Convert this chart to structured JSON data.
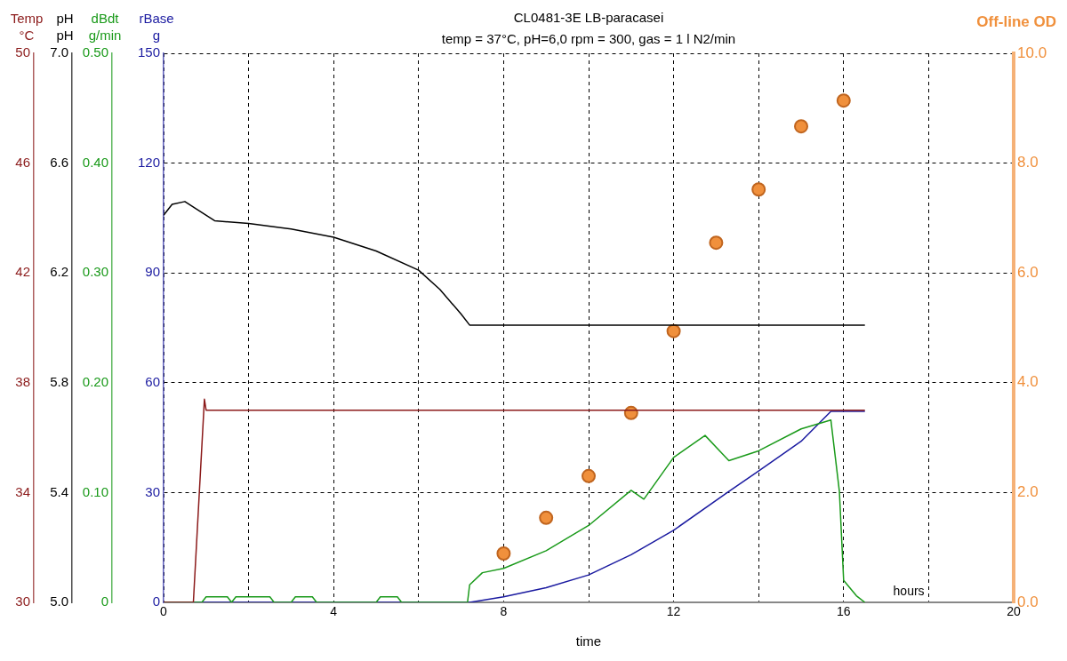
{
  "chart_data": [
    {
      "type": "line",
      "title": "CL0481-3E LB-paracasei",
      "subtitle": "temp = 37°C, pH=6,0 rpm = 300, gas = 1 l N2/min",
      "xlabel": "time",
      "ylabel": "rBase\ng",
      "y2label": "Off-line OD",
      "xlim": [
        0,
        20
      ],
      "xticks": [
        0,
        {
          "value": 2,
          "label": null
        },
        4,
        {
          "value": 6,
          "label": null
        },
        8,
        {
          "value": 10,
          "label": null
        },
        12,
        {
          "value": 14,
          "label": null
        },
        16,
        {
          "value": 18,
          "label": null
        },
        20
      ],
      "ylim": [
        0,
        150
      ],
      "yticks": [
        0,
        30,
        60,
        90,
        120,
        150
      ],
      "y2lim": [
        0,
        10
      ],
      "y2ticks": [
        {
          "value": 0,
          "label": "0.0"
        },
        {
          "value": 2,
          "label": "2.0"
        },
        {
          "value": 4,
          "label": "4.0"
        },
        {
          "value": 6,
          "label": "6.0"
        },
        {
          "value": 8,
          "label": "8.0"
        },
        {
          "value": 10,
          "label": "10.0"
        }
      ],
      "grid": true,
      "legend": false,
      "marker": "none",
      "line_style": "solid",
      "annotations": [
        "hours"
      ],
      "series": [
        {
          "color": "#1a1aa0",
          "x": [
            0,
            7.2,
            8,
            9,
            10,
            11,
            12,
            13.3,
            14,
            15,
            15.7,
            16.5
          ],
          "values": [
            0,
            0,
            1.5,
            4,
            7.5,
            13,
            19.7,
            30.3,
            35.9,
            44,
            52.2,
            52.2
          ]
        },
        {
          "type": "scatter",
          "axis": "y2",
          "color": "#f0903c",
          "marker": "circle",
          "x": [
            8,
            9,
            10,
            11,
            12,
            13,
            14,
            15,
            16
          ],
          "values": [
            0.89,
            1.54,
            2.3,
            3.45,
            4.94,
            6.55,
            7.52,
            8.67,
            9.14
          ]
        }
      ]
    },
    {
      "type": "line",
      "ylabel": "dBdt\ng/min",
      "xlim": [
        0,
        20
      ],
      "ylim": [
        0,
        0.5
      ],
      "yticks": [
        0,
        {
          "value": 0.1,
          "label": "0.10"
        },
        {
          "value": 0.2,
          "label": "0.20"
        },
        {
          "value": 0.3,
          "label": "0.30"
        },
        {
          "value": 0.4,
          "label": "0.40"
        },
        {
          "value": 0.5,
          "label": "0.50"
        }
      ],
      "tick_labels": "y",
      "legend": false,
      "marker": "none",
      "line_style": "solid",
      "series": [
        {
          "color": "#1a9a1a",
          "x": [
            0,
            0.9,
            1.0,
            1.5,
            1.6,
            1.7,
            2.5,
            2.6,
            3.0,
            3.1,
            3.5,
            3.6,
            5.0,
            5.1,
            5.5,
            5.6,
            7.15,
            7.2,
            7.5,
            8,
            9,
            10,
            11,
            11.3,
            12,
            12.74,
            13.3,
            14,
            15,
            15.7,
            15.9,
            16,
            16.3,
            16.5
          ],
          "values": [
            0,
            0,
            0.005,
            0.005,
            0,
            0.005,
            0.005,
            0,
            0,
            0.005,
            0.005,
            0,
            0,
            0.005,
            0.005,
            0,
            0,
            0.016,
            0.027,
            0.031,
            0.047,
            0.07,
            0.102,
            0.094,
            0.132,
            0.152,
            0.129,
            0.138,
            0.158,
            0.166,
            0.101,
            0.02,
            0.006,
            0
          ]
        }
      ]
    },
    {
      "type": "line",
      "ylabel": "pH\npH",
      "xlim": [
        0,
        20
      ],
      "ylim": [
        5,
        7
      ],
      "yticks": [
        {
          "value": 5,
          "label": "5.0"
        },
        {
          "value": 5.4,
          "label": "5.4"
        },
        {
          "value": 5.8,
          "label": "5.8"
        },
        {
          "value": 6.2,
          "label": "6.2"
        },
        {
          "value": 6.6,
          "label": "6.6"
        },
        {
          "value": 7,
          "label": "7.0"
        }
      ],
      "tick_labels": "y",
      "legend": false,
      "marker": "none",
      "line_style": "solid",
      "series": [
        {
          "color": "#000000",
          "x": [
            0,
            0.2,
            0.5,
            0.8,
            1.2,
            2,
            3,
            4,
            5,
            6,
            6.5,
            7,
            7.2,
            8,
            10,
            12,
            14,
            16,
            16.5
          ],
          "values": [
            6.41,
            6.45,
            6.46,
            6.43,
            6.39,
            6.38,
            6.36,
            6.33,
            6.28,
            6.21,
            6.14,
            6.05,
            6.01,
            6.01,
            6.01,
            6.01,
            6.01,
            6.01,
            6.01
          ]
        }
      ]
    },
    {
      "type": "line",
      "ylabel": "Temp\n°C",
      "xlim": [
        0,
        20
      ],
      "ylim": [
        30,
        50
      ],
      "yticks": [
        30,
        34,
        38,
        42,
        46,
        50
      ],
      "tick_labels": "y",
      "legend": false,
      "marker": "none",
      "line_style": "solid",
      "series": [
        {
          "color": "#8b1a1a",
          "x": [
            0,
            0.7,
            0.96,
            1.0,
            2,
            4,
            6,
            8,
            10,
            12,
            14,
            16,
            16.5
          ],
          "values": [
            30,
            30,
            37.4,
            37,
            37,
            37,
            37,
            37,
            37,
            37,
            37,
            37,
            37
          ]
        }
      ]
    }
  ]
}
